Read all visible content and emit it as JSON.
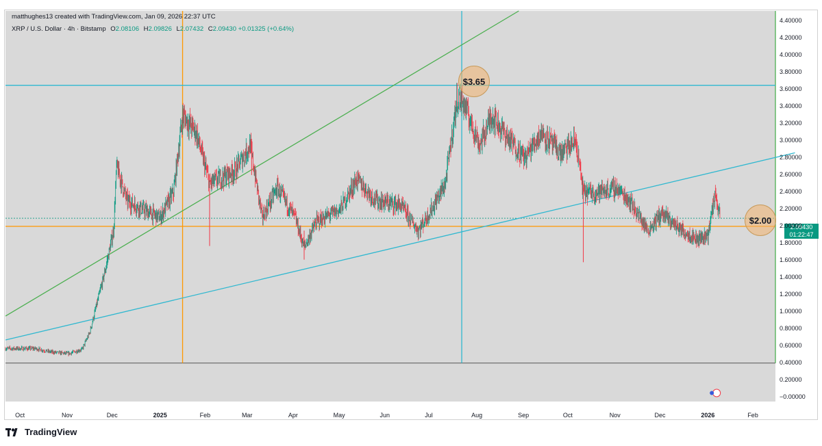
{
  "header": {
    "created": "matthughes13 created with TradingView.com, Jan 09, 2026 22:37 UTC",
    "symbol": "XRP / U.S. Dollar · 4h · Bitstamp",
    "o_label": "O",
    "o_value": "2.08106",
    "h_label": "H",
    "h_value": "2.09826",
    "l_label": "L",
    "l_value": "2.07432",
    "c_label": "C",
    "c_value": "2.09430",
    "change": "+0.01325 (+0.64%)"
  },
  "price_tag": {
    "price": "2.09430",
    "countdown": "01:22:47"
  },
  "annotations": {
    "top": "$3.65",
    "bottom": "$2.00"
  },
  "brand": "TradingView",
  "colors": {
    "up": "#089981",
    "down": "#f23645",
    "bg": "#d9d9d9",
    "green_line": "#4caf50",
    "blue_line": "#2fb8d0",
    "orange_line": "#ff9800",
    "circle": "#f2b36d"
  },
  "chart_data": {
    "type": "candlestick",
    "title": "XRP / U.S. Dollar · 4h · Bitstamp",
    "x_ticks": [
      "Oct",
      "Nov",
      "Dec",
      "2025",
      "Feb",
      "Mar",
      "Apr",
      "May",
      "Jun",
      "Jul",
      "Aug",
      "Sep",
      "Oct",
      "Nov",
      "Dec",
      "2026",
      "Feb"
    ],
    "bold_ticks": [
      "2025",
      "2026"
    ],
    "y_ticks": [
      "4.40000",
      "4.20000",
      "4.00000",
      "3.80000",
      "3.60000",
      "3.40000",
      "3.20000",
      "3.00000",
      "2.80000",
      "2.60000",
      "2.40000",
      "2.20000",
      "2.00000",
      "1.80000",
      "1.60000",
      "1.40000",
      "1.20000",
      "1.00000",
      "0.80000",
      "0.60000",
      "0.40000",
      "0.20000",
      "0.00000"
    ],
    "ylim": [
      -0.05,
      4.52
    ],
    "x_range_months": [
      "2024-09-20",
      "2026-02-15"
    ],
    "price_path": [
      [
        "2024-09-20",
        0.57
      ],
      [
        "2024-10-10",
        0.57
      ],
      [
        "2024-10-20",
        0.53
      ],
      [
        "2024-11-01",
        0.51
      ],
      [
        "2024-11-10",
        0.56
      ],
      [
        "2024-11-15",
        0.75
      ],
      [
        "2024-11-20",
        1.1
      ],
      [
        "2024-11-25",
        1.45
      ],
      [
        "2024-12-01",
        1.95
      ],
      [
        "2024-12-03",
        2.7
      ],
      [
        "2024-12-10",
        2.3
      ],
      [
        "2024-12-20",
        2.2
      ],
      [
        "2025-01-01",
        2.1
      ],
      [
        "2025-01-10",
        2.4
      ],
      [
        "2025-01-16",
        3.3
      ],
      [
        "2025-01-25",
        3.1
      ],
      [
        "2025-02-03",
        2.5
      ],
      [
        "2025-02-20",
        2.65
      ],
      [
        "2025-03-02",
        2.95
      ],
      [
        "2025-03-10",
        2.1
      ],
      [
        "2025-03-20",
        2.45
      ],
      [
        "2025-04-01",
        2.1
      ],
      [
        "2025-04-07",
        1.75
      ],
      [
        "2025-04-15",
        2.05
      ],
      [
        "2025-05-01",
        2.2
      ],
      [
        "2025-05-12",
        2.55
      ],
      [
        "2025-05-25",
        2.3
      ],
      [
        "2025-06-10",
        2.25
      ],
      [
        "2025-06-22",
        1.95
      ],
      [
        "2025-07-01",
        2.2
      ],
      [
        "2025-07-10",
        2.5
      ],
      [
        "2025-07-18",
        3.5
      ],
      [
        "2025-07-22",
        3.45
      ],
      [
        "2025-08-02",
        2.95
      ],
      [
        "2025-08-10",
        3.3
      ],
      [
        "2025-08-20",
        3.05
      ],
      [
        "2025-09-01",
        2.8
      ],
      [
        "2025-09-12",
        3.1
      ],
      [
        "2025-09-25",
        2.85
      ],
      [
        "2025-10-05",
        3.0
      ],
      [
        "2025-10-10",
        2.4
      ],
      [
        "2025-10-20",
        2.4
      ],
      [
        "2025-11-01",
        2.45
      ],
      [
        "2025-11-10",
        2.3
      ],
      [
        "2025-11-22",
        1.95
      ],
      [
        "2025-12-01",
        2.15
      ],
      [
        "2025-12-15",
        1.95
      ],
      [
        "2025-12-25",
        1.85
      ],
      [
        "2026-01-01",
        1.9
      ],
      [
        "2026-01-06",
        2.4
      ],
      [
        "2026-01-09",
        2.09
      ]
    ],
    "overlays": {
      "horizontal_levels": [
        3.65,
        2.0
      ],
      "vertical_dates": [
        "2025-01-16",
        "2025-07-21",
        "2026-02-15"
      ],
      "trendlines": [
        {
          "name": "green",
          "from": [
            "2024-09-20",
            0.95
          ],
          "to": [
            "2025-08-28",
            4.52
          ]
        },
        {
          "name": "blue",
          "from": [
            "2024-09-20",
            0.67
          ],
          "to": [
            "2026-02-28",
            2.86
          ]
        }
      ]
    }
  }
}
